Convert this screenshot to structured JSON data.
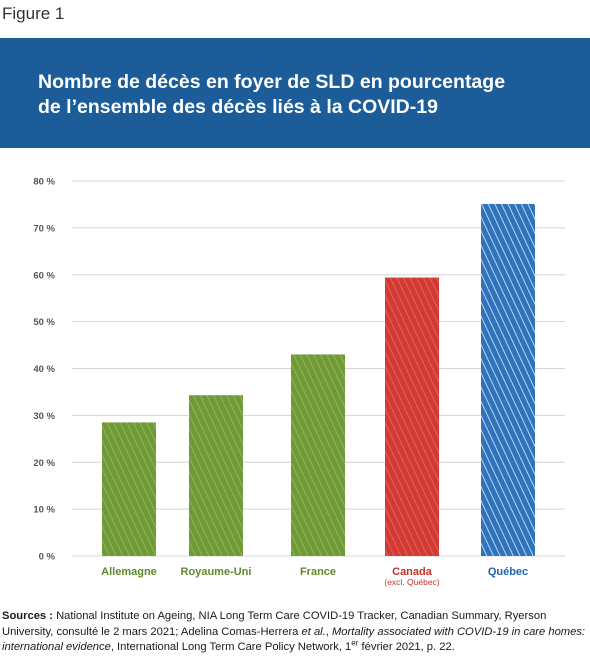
{
  "figure_label": "Figure 1",
  "title_line1": "Nombre de décès en foyer de SLD en pourcentage",
  "title_line2": "de l’ensemble des décès liés à la COVID-19",
  "colors": {
    "header_bg": "#1b5c99",
    "green": "#6f9a36",
    "red": "#d23a33",
    "blue": "#2f73bd"
  },
  "chart_data": {
    "type": "bar",
    "categories": [
      "Allemagne",
      "Royaume-Uni",
      "France",
      "Canada",
      "Québec"
    ],
    "category_sublabels": [
      "",
      "",
      "",
      "(excl. Québec)",
      ""
    ],
    "values": [
      28.5,
      34.3,
      43,
      59.4,
      75.1
    ],
    "bar_colors": [
      "#6f9a36",
      "#6f9a36",
      "#6f9a36",
      "#d23a33",
      "#2f73bd"
    ],
    "label_colors": [
      "#5e8a2c",
      "#5e8a2c",
      "#5e8a2c",
      "#c8302a",
      "#2563ad"
    ],
    "ylim": [
      0,
      80
    ],
    "yticks": [
      0,
      10,
      20,
      30,
      40,
      50,
      60,
      70,
      80
    ],
    "ytick_labels": [
      "0 %",
      "10 %",
      "20 %",
      "30 %",
      "40 %",
      "50 %",
      "60 %",
      "70 %",
      "80 %"
    ],
    "grid": true
  },
  "sources": {
    "label": "Sources :",
    "text1": "National Institute on Ageing, NIA Long Term Care COVID-19 Tracker, Canadian Summary, Ryerson University, consulté le 2 mars 2021; Adelina Comas-Herrera",
    "etal": "et al.",
    "text2": ",",
    "italic_title": "Mortality associated with COVID-19 in care homes: international evidence",
    "text3": ", International Long Term Care Policy Network, 1",
    "sup": "er",
    "text4": "février 2021, p. 22."
  }
}
